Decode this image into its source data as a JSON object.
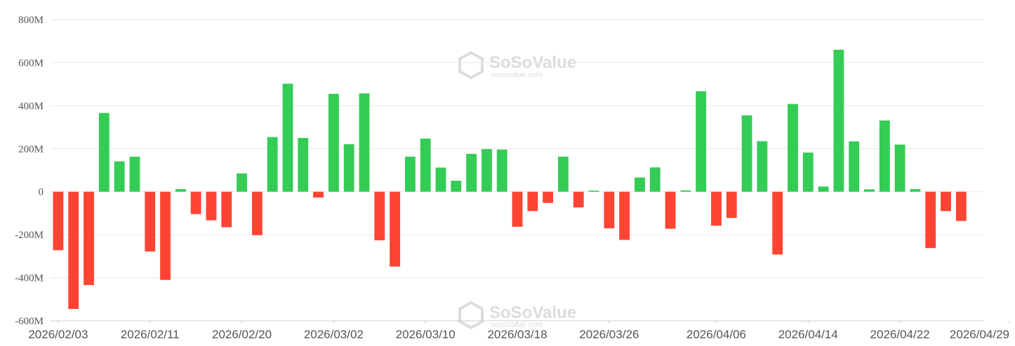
{
  "chart_data": {
    "type": "bar",
    "categories": [
      "2026/02/03",
      "2026/02/04",
      "2026/02/05",
      "2026/02/06",
      "2026/02/09",
      "2026/02/10",
      "2026/02/11",
      "2026/02/12",
      "2026/02/13",
      "2026/02/17",
      "2026/02/18",
      "2026/02/19",
      "2026/02/20",
      "2026/02/23",
      "2026/02/24",
      "2026/02/25",
      "2026/02/26",
      "2026/02/27",
      "2026/03/02",
      "2026/03/03",
      "2026/03/04",
      "2026/03/05",
      "2026/03/06",
      "2026/03/09",
      "2026/03/10",
      "2026/03/11",
      "2026/03/12",
      "2026/03/13",
      "2026/03/16",
      "2026/03/17",
      "2026/03/18",
      "2026/03/19",
      "2026/03/20",
      "2026/03/23",
      "2026/03/24",
      "2026/03/25",
      "2026/03/26",
      "2026/03/27",
      "2026/03/30",
      "2026/03/31",
      "2026/04/01",
      "2026/04/02",
      "2026/04/03",
      "2026/04/06",
      "2026/04/07",
      "2026/04/08",
      "2026/04/09",
      "2026/04/10",
      "2026/04/13",
      "2026/04/14",
      "2026/04/15",
      "2026/04/16",
      "2026/04/17",
      "2026/04/20",
      "2026/04/21",
      "2026/04/22",
      "2026/04/23",
      "2026/04/24",
      "2026/04/27",
      "2026/04/28",
      "2026/04/29"
    ],
    "values": [
      -272,
      -545,
      -434,
      366,
      141,
      163,
      -278,
      -410,
      12,
      -104,
      -133,
      -165,
      85,
      -202,
      254,
      502,
      250,
      -27,
      455,
      221,
      457,
      -226,
      -348,
      163,
      247,
      112,
      51,
      176,
      198,
      196,
      -163,
      -90,
      -52,
      163,
      -73,
      5,
      -170,
      -224,
      66,
      113,
      -172,
      6,
      467,
      -158,
      -122,
      355,
      235,
      -292,
      408,
      182,
      24,
      660,
      234,
      11,
      331,
      219,
      12,
      -262,
      -90,
      -136,
      0
    ],
    "x_tick_labels": [
      "2026/02/03",
      "2026/02/11",
      "2026/02/20",
      "2026/03/02",
      "2026/03/10",
      "2026/03/18",
      "2026/03/26",
      "2026/04/06",
      "2026/04/14",
      "2026/04/22",
      "2026/04/29"
    ],
    "y_ticks": [
      -600,
      -400,
      -200,
      0,
      200,
      400,
      600,
      800
    ],
    "y_tick_labels": [
      "-600M",
      "-400M",
      "-200M",
      "0",
      "200M",
      "400M",
      "600M",
      "800M"
    ],
    "ylim": [
      -600,
      800
    ],
    "title": "",
    "xlabel": "",
    "ylabel": "",
    "grid": true,
    "legend": "none",
    "colors": {
      "positive": "#33cc55",
      "negative": "#ff4433",
      "grid": "#e6e6e6",
      "axis": "#cccccc"
    }
  },
  "watermark": {
    "name": "SoSoValue",
    "url": "sosovalue.com",
    "icon": "sosovalue-logo-icon"
  }
}
